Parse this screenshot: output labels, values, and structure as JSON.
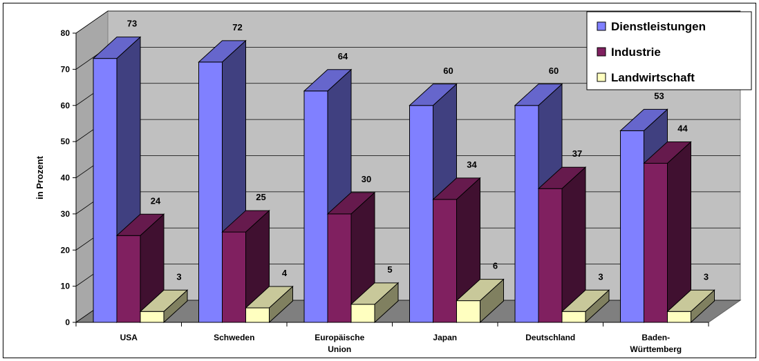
{
  "chart_data": {
    "type": "bar",
    "ylabel": "in Prozent",
    "ylim": [
      0,
      80
    ],
    "yticks": [
      "0",
      "10",
      "20",
      "30",
      "40",
      "50",
      "60",
      "70",
      "80"
    ],
    "categories": [
      [
        "USA"
      ],
      [
        "Schweden"
      ],
      [
        "Europäische",
        "Union"
      ],
      [
        "Japan"
      ],
      [
        "Deutschland"
      ],
      [
        "Baden-",
        "Württemberg"
      ]
    ],
    "series": [
      {
        "name": "Dienstleistungen",
        "values": [
          73,
          72,
          64,
          60,
          60,
          53
        ],
        "color": "#8080FF"
      },
      {
        "name": "Industrie",
        "values": [
          24,
          25,
          30,
          34,
          37,
          44
        ],
        "color": "#802060"
      },
      {
        "name": "Landwirtschaft",
        "values": [
          3,
          4,
          5,
          6,
          3,
          3
        ],
        "color": "#FFFFC0"
      }
    ],
    "legend_position": "top-right",
    "grid": true
  }
}
